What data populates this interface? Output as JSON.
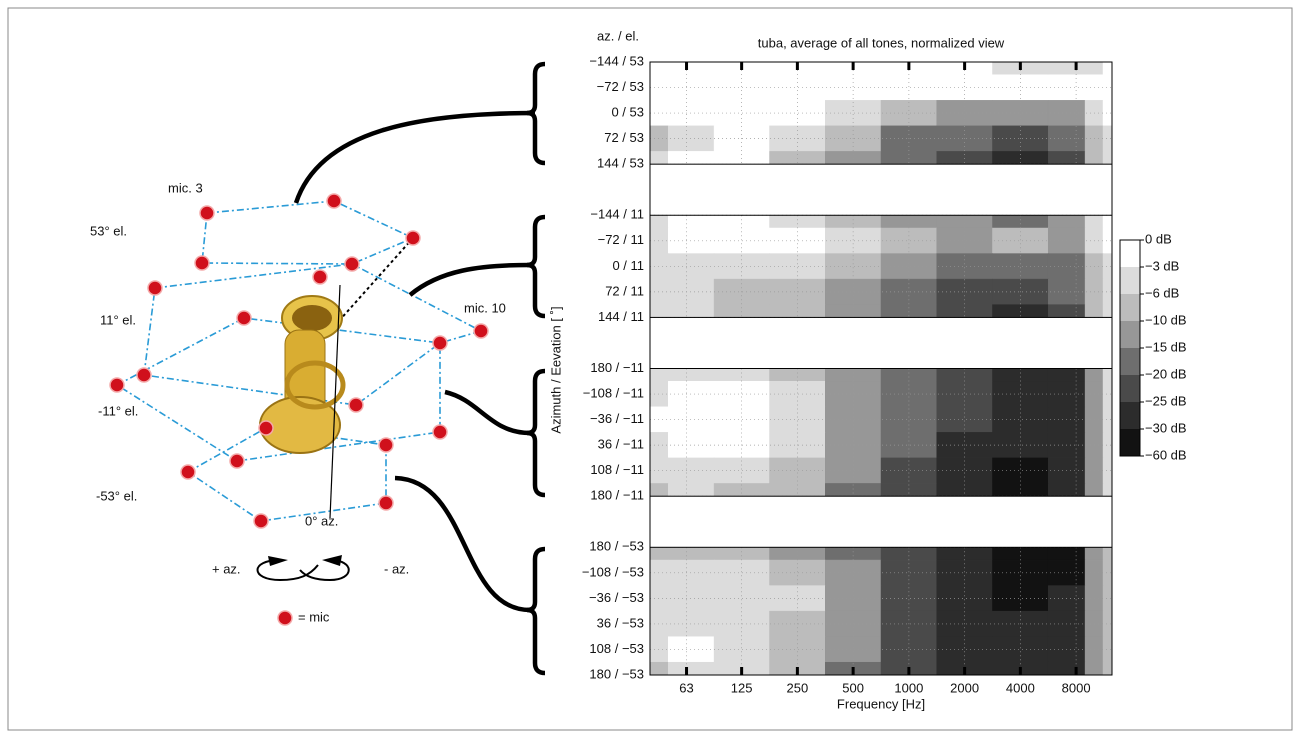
{
  "diagram": {
    "mic_3": "mic. 3",
    "mic_10": "mic. 10",
    "el_53": "53° el.",
    "el_11": "11° el.",
    "el_m11": "-11° el.",
    "el_m53": "-53° el.",
    "az_0": "0° az.",
    "plus_az": "+ az.",
    "minus_az": "- az.",
    "mic_legend": "= mic"
  },
  "chart_data": {
    "type": "contour",
    "title": "tuba, average of all tones, normalized view",
    "row_header": "az. / el.",
    "xlabel": "Frequency [Hz]",
    "ylabel": "Azimuth / Eevation [ ˚]",
    "log_x": true,
    "grid": true,
    "xlim": [
      40,
      12500
    ],
    "xticks": [
      63,
      125,
      250,
      500,
      1000,
      2000,
      4000,
      8000
    ],
    "x": [
      40,
      63,
      125,
      250,
      500,
      1000,
      2000,
      4000,
      8000,
      10000,
      12500
    ],
    "bands": [
      {
        "rows": [
          "−144 / 53",
          "−72 / 53",
          "0 / 53",
          "72 / 53",
          "144 / 53"
        ],
        "values": [
          [
            -1,
            -1,
            -1,
            -1,
            -1,
            -2,
            -3,
            -4,
            -5,
            -4,
            -2
          ],
          [
            -1,
            -1,
            -1,
            -1,
            -1,
            -1,
            -2,
            -2,
            -2,
            -2,
            -2
          ],
          [
            -3,
            -1,
            -1,
            -2,
            -5,
            -8,
            -11,
            -14,
            -12,
            -5,
            -3
          ],
          [
            -7,
            -4,
            -2,
            -5,
            -10,
            -16,
            -20,
            -22,
            -20,
            -8,
            -4
          ],
          [
            -5,
            -3,
            -2,
            -8,
            -13,
            -18,
            -22,
            -26,
            -22,
            -10,
            -5
          ]
        ]
      },
      {
        "rows": [
          "−144 / 11",
          "−72 / 11",
          "0 / 11",
          "72 / 11",
          "144 / 11"
        ],
        "values": [
          [
            -4,
            -3,
            -3,
            -4,
            -8,
            -12,
            -15,
            -16,
            -14,
            -6,
            -3
          ],
          [
            -5,
            -3,
            -3,
            -2,
            -6,
            -10,
            -12,
            -10,
            -12,
            -6,
            -3
          ],
          [
            -5,
            -4,
            -5,
            -6,
            -10,
            -14,
            -17,
            -17,
            -18,
            -8,
            -4
          ],
          [
            -5,
            -4,
            -8,
            -8,
            -12,
            -18,
            -22,
            -24,
            -20,
            -9,
            -4
          ],
          [
            -6,
            -4,
            -8,
            -10,
            -14,
            -20,
            -24,
            -26,
            -22,
            -10,
            -5
          ]
        ]
      },
      {
        "rows": [
          "180 / −11",
          "−108 / −11",
          "−36 / −11",
          "36 / −11",
          "108 / −11",
          "180 / −11"
        ],
        "values": [
          [
            -6,
            -4,
            -5,
            -8,
            -14,
            -20,
            -24,
            -27,
            -26,
            -12,
            -6
          ],
          [
            -4,
            -2,
            -3,
            -6,
            -12,
            -20,
            -23,
            -27,
            -26,
            -12,
            -6
          ],
          [
            -3,
            -1,
            -2,
            -6,
            -12,
            -18,
            -22,
            -27,
            -28,
            -14,
            -6
          ],
          [
            -4,
            -3,
            -3,
            -6,
            -12,
            -20,
            -26,
            -30,
            -28,
            -14,
            -6
          ],
          [
            -6,
            -5,
            -5,
            -8,
            -15,
            -22,
            -27,
            -32,
            -30,
            -14,
            -6
          ],
          [
            -8,
            -6,
            -7,
            -10,
            -16,
            -22,
            -27,
            -32,
            -30,
            -14,
            -6
          ]
        ]
      },
      {
        "rows": [
          "180 / −53",
          "−108 / −53",
          "−36 / −53",
          "36 / −53",
          "108 / −53",
          "180 / −53"
        ],
        "values": [
          [
            -8,
            -7,
            -8,
            -12,
            -16,
            -25,
            -30,
            -32,
            -32,
            -15,
            -8
          ],
          [
            -6,
            -5,
            -5,
            -9,
            -15,
            -25,
            -30,
            -32,
            -32,
            -15,
            -8
          ],
          [
            -5,
            -4,
            -4,
            -6,
            -14,
            -25,
            -28,
            -32,
            -30,
            -15,
            -8
          ],
          [
            -5,
            -4,
            -5,
            -8,
            -15,
            -22,
            -27,
            -30,
            -28,
            -14,
            -8
          ],
          [
            -5,
            -3,
            -4,
            -8,
            -14,
            -22,
            -26,
            -28,
            -26,
            -14,
            -8
          ],
          [
            -7,
            -5,
            -6,
            -10,
            -16,
            -24,
            -28,
            -30,
            -28,
            -15,
            -8
          ]
        ]
      }
    ],
    "colorbar": {
      "ticks": [
        {
          "value": 0,
          "label": "0 dB"
        },
        {
          "value": -3,
          "label": "−3 dB"
        },
        {
          "value": -6,
          "label": "−6 dB"
        },
        {
          "value": -10,
          "label": "−10 dB"
        },
        {
          "value": -15,
          "label": "−15 dB"
        },
        {
          "value": -20,
          "label": "−20 dB"
        },
        {
          "value": -25,
          "label": "−25 dB"
        },
        {
          "value": -30,
          "label": "−30 dB"
        },
        {
          "value": -60,
          "label": "−60 dB"
        }
      ],
      "colors": [
        "#ffffff",
        "#dcdcdc",
        "#bcbcbc",
        "#979797",
        "#6e6e6e",
        "#4a4a4a",
        "#2c2c2c",
        "#121212"
      ]
    }
  }
}
